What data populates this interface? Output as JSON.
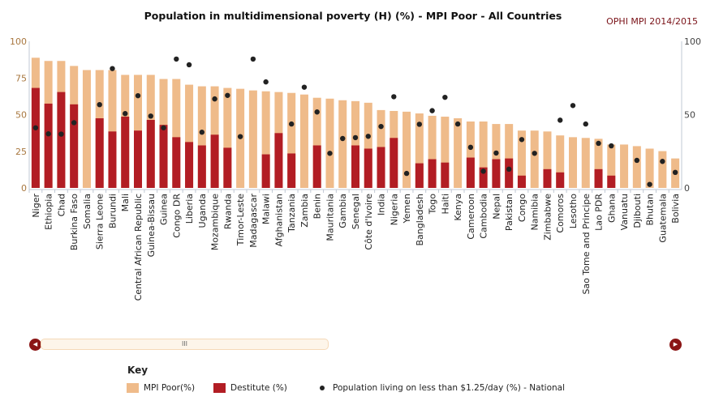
{
  "title": "Population in multidimensional poverty (H) (%) - MPI Poor - All Countries",
  "credit": "OPHI MPI 2014/2015",
  "colors": {
    "mpi_poor": "#efbb8a",
    "destitute": "#b21d24",
    "income_poor": "#222222"
  },
  "key": {
    "title": "Key",
    "items": [
      "MPI Poor(%)",
      "Destitute (%)",
      "Population living on less than $1.25/day (%) - National"
    ]
  },
  "scrollbar": {
    "grip": "III",
    "left_icon": "arrow-left-icon",
    "right_icon": "arrow-right-icon"
  },
  "chart_data": {
    "type": "bar",
    "title": "Population in multidimensional poverty (H) (%) - MPI Poor - All Countries",
    "ylim": [
      0,
      100
    ],
    "yticks_left": [
      "0",
      "25",
      "50",
      "75",
      "100"
    ],
    "yticks_right": [
      "0",
      "50",
      "100"
    ],
    "grid": false,
    "legend": "bottom-left",
    "categories": [
      "Niger",
      "Ethiopia",
      "Chad",
      "Burkina Faso",
      "Somalia",
      "Sierra Leone",
      "Burundi",
      "Mali",
      "Central African Republic",
      "Guinea-Bissau",
      "Guinea",
      "Congo DR",
      "Liberia",
      "Uganda",
      "Mozambique",
      "Rwanda",
      "Timor-Leste",
      "Madagascar",
      "Malawi",
      "Afghanistan",
      "Tanzania",
      "Zambia",
      "Benin",
      "Mauritania",
      "Gambia",
      "Senegal",
      "Côte d'Ivoire",
      "India",
      "Nigeria",
      "Yemen",
      "Bangladesh",
      "Togo",
      "Haiti",
      "Kenya",
      "Cameroon",
      "Cambodia",
      "Nepal",
      "Pakistan",
      "Congo",
      "Namibia",
      "Zimbabwe",
      "Comoros",
      "Lesotho",
      "Sao Tome and Principe",
      "Lao PDR",
      "Ghana",
      "Vanuatu",
      "Djibouti",
      "Bhutan",
      "Guatemala",
      "Bolivia"
    ],
    "series": [
      {
        "name": "MPI Poor(%)",
        "type": "bar",
        "values": [
          88.8,
          86.6,
          86.6,
          83.2,
          80.4,
          80.4,
          80.4,
          77.1,
          77.1,
          77.1,
          74.3,
          74.3,
          70.4,
          69.3,
          69.3,
          68.2,
          67.6,
          66.5,
          65.9,
          65.4,
          64.8,
          63.7,
          61.5,
          60.9,
          59.8,
          59.2,
          58.1,
          53.1,
          52.5,
          52.0,
          50.8,
          49.2,
          48.6,
          47.5,
          45.3,
          45.3,
          43.6,
          43.6,
          39.1,
          39.1,
          38.5,
          35.8,
          34.6,
          34.1,
          33.5,
          29.6,
          29.6,
          28.5,
          26.8,
          25.1,
          20.1
        ]
      },
      {
        "name": "Destitute (%)",
        "type": "bar",
        "values": [
          68.2,
          57.5,
          65.4,
          57.0,
          null,
          47.5,
          38.5,
          48.6,
          39.1,
          46.4,
          43.0,
          34.6,
          31.3,
          29.0,
          36.3,
          27.4,
          null,
          null,
          22.9,
          37.4,
          23.5,
          null,
          29.0,
          null,
          null,
          29.0,
          26.8,
          27.9,
          34.1,
          null,
          16.8,
          19.6,
          17.3,
          null,
          20.7,
          14.0,
          19.6,
          20.1,
          8.4,
          null,
          12.8,
          10.6,
          null,
          null,
          12.8,
          8.4,
          null,
          null,
          null,
          null,
          null
        ]
      },
      {
        "name": "Population living on less than $1.25/day (%) - National",
        "type": "scatter",
        "values": [
          41.0,
          36.9,
          36.7,
          44.5,
          null,
          56.8,
          81.4,
          50.7,
          62.9,
          49.0,
          41.0,
          87.9,
          84.0,
          38.0,
          60.7,
          63.1,
          35.0,
          87.9,
          72.3,
          null,
          43.6,
          68.7,
          51.8,
          23.6,
          33.7,
          34.3,
          35.2,
          41.9,
          62.2,
          9.9,
          43.4,
          52.7,
          61.8,
          43.6,
          27.7,
          11.4,
          23.8,
          12.8,
          33.0,
          23.6,
          null,
          46.2,
          56.2,
          43.6,
          30.4,
          28.7,
          null,
          18.8,
          2.4,
          18.1,
          10.6
        ]
      }
    ]
  }
}
